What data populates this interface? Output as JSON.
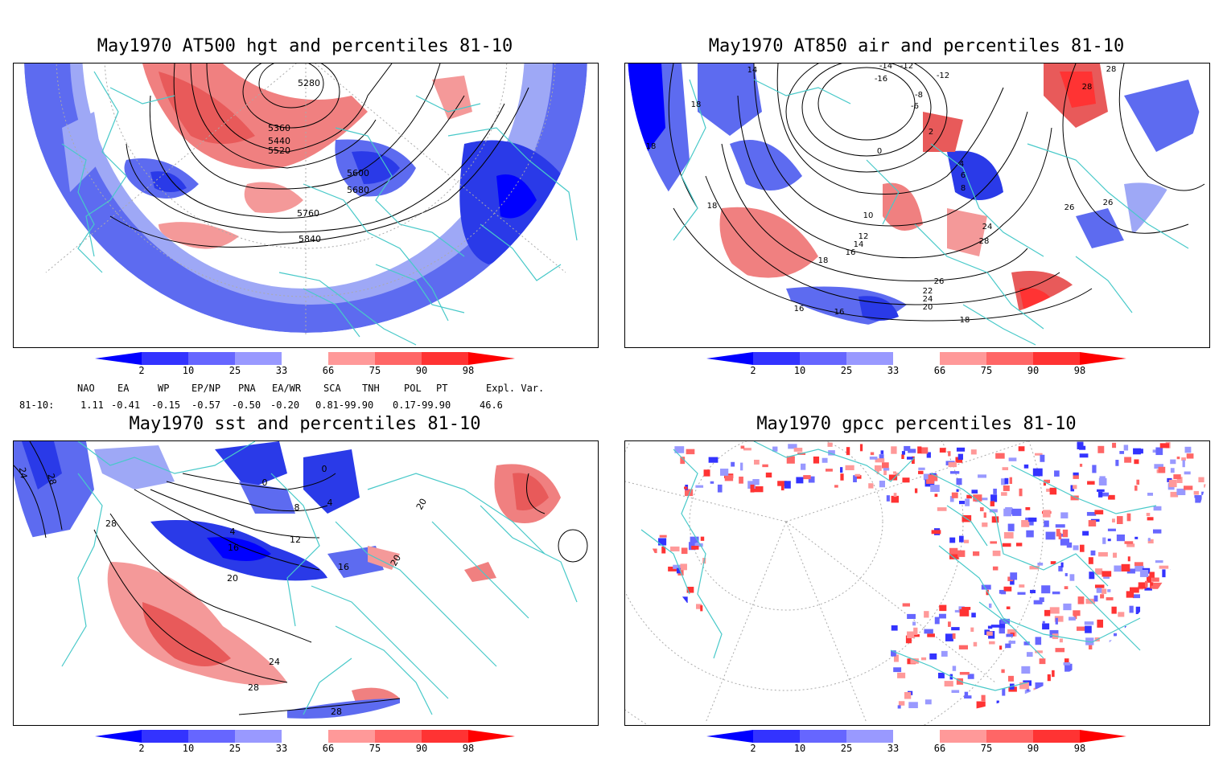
{
  "panels": [
    {
      "title": "May1970 AT500 hgt and percentiles 81-10",
      "contour_labels": [
        "5280",
        "5360",
        "5440",
        "5520",
        "5600",
        "5680",
        "5760",
        "5840"
      ]
    },
    {
      "title": "May1970 AT850 air and percentiles 81-10",
      "contour_labels": [
        "-16",
        "-14",
        "-12",
        "-12",
        "-8",
        "-6",
        "0",
        "2",
        "4",
        "6",
        "8",
        "10",
        "12",
        "14",
        "14",
        "16",
        "16",
        "16",
        "18",
        "18",
        "18",
        "18",
        "18",
        "20",
        "22",
        "24",
        "24",
        "26",
        "26",
        "26",
        "28",
        "28",
        "28"
      ]
    },
    {
      "title": "May1970 sst and percentiles 81-10",
      "contour_labels": [
        "24",
        "28",
        "28",
        "0",
        "0",
        "4",
        "8",
        "4",
        "12",
        "16",
        "16",
        "20",
        "20",
        "24",
        "28",
        "28",
        "20"
      ]
    },
    {
      "title": "May1970 gpcc percentiles 81-10",
      "contour_labels": []
    }
  ],
  "colorbar": {
    "labels": [
      "2",
      "10",
      "25",
      "33",
      "66",
      "75",
      "90",
      "98"
    ],
    "colors": [
      "#0000ff",
      "#3333ff",
      "#6666ff",
      "#9999ff",
      "#ffffff",
      "#ff9999",
      "#ff6666",
      "#ff3333",
      "#ff0000"
    ]
  },
  "indices": {
    "headers": [
      "NAO",
      "EA",
      "WP",
      "EP/NP",
      "PNA",
      "EA/WR",
      "SCA",
      "TNH",
      "POL",
      "PT",
      "Expl. Var."
    ],
    "row_label": "81-10:",
    "values": [
      "1.11",
      "-0.41",
      "-0.15",
      "-0.57",
      "-0.50",
      "-0.20",
      "0.81-99.90",
      "0.17-99.90",
      "46.6"
    ]
  }
}
